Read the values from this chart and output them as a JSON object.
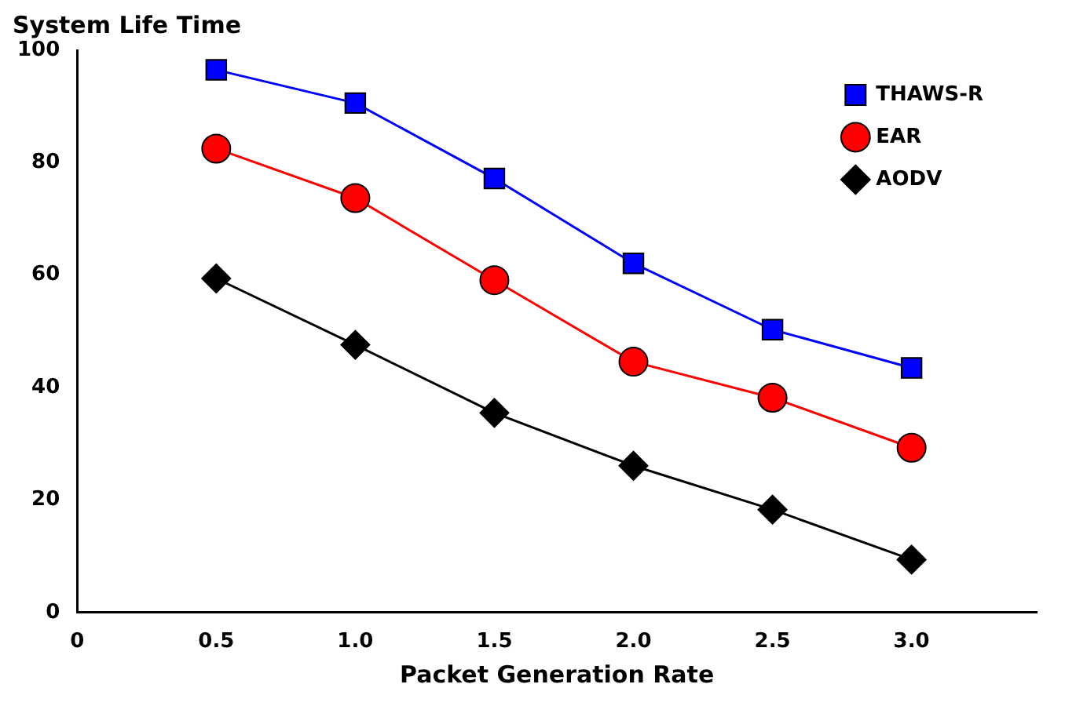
{
  "chart_data": {
    "type": "line",
    "title": "System Life Time",
    "xlabel": "Packet Generation Rate",
    "x": [
      0.5,
      1.0,
      1.5,
      2.0,
      2.5,
      3.0
    ],
    "series": [
      {
        "name": "THAWS-R",
        "color": "#0000ff",
        "marker": "square",
        "values": [
          96.5,
          90.6,
          77.2,
          62.1,
          50.3,
          43.5
        ]
      },
      {
        "name": "EAR",
        "color": "#ff0000",
        "marker": "circle",
        "values": [
          82.5,
          73.7,
          59.1,
          44.6,
          38.2,
          29.3
        ]
      },
      {
        "name": "AODV",
        "color": "#000000",
        "marker": "diamond",
        "values": [
          59.4,
          47.6,
          35.5,
          26.1,
          18.3,
          9.4
        ]
      }
    ],
    "xlim": [
      0,
      3.45
    ],
    "xticks": [
      0,
      {
        "value": 0.5,
        "label": "0.5"
      },
      {
        "value": 1,
        "label": "1.0"
      },
      {
        "value": 1.5,
        "label": "1.5"
      },
      {
        "value": 2,
        "label": "2.0"
      },
      {
        "value": 2.5,
        "label": "2.5"
      },
      {
        "value": 3,
        "label": "3.0"
      }
    ],
    "ylim": [
      0,
      100
    ],
    "yticks": [
      0,
      20,
      40,
      60,
      80,
      100
    ],
    "grid": false,
    "legend": "top right",
    "line_style": "solid"
  }
}
